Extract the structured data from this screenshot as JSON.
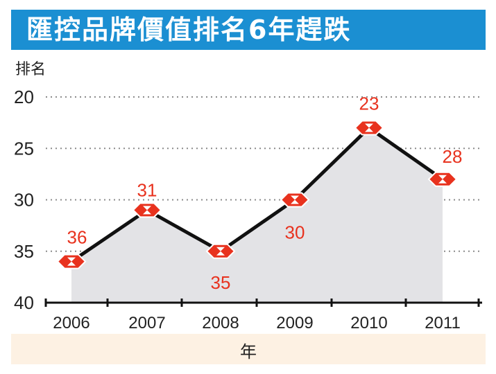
{
  "title": "匯控品牌價值排名6年趕跌",
  "chart_data": {
    "type": "line",
    "ylabel": "排名",
    "xlabel": "年",
    "categories": [
      "2006",
      "2007",
      "2008",
      "2009",
      "2010",
      "2011"
    ],
    "values": [
      36,
      31,
      35,
      30,
      23,
      28
    ],
    "yticks": [
      20,
      25,
      30,
      35,
      40
    ],
    "ylim": [
      20,
      40
    ],
    "y_inverted": true,
    "grid": true,
    "area_fill": true,
    "colors": {
      "title_bg": "#1b8fd2",
      "line": "#111111",
      "area": "#e3e3e6",
      "label": "#e8321e",
      "marker": "#e8321e",
      "footer_bg": "#fdf1e3"
    },
    "marker_icon": "hsbc-hexagon-logo"
  }
}
